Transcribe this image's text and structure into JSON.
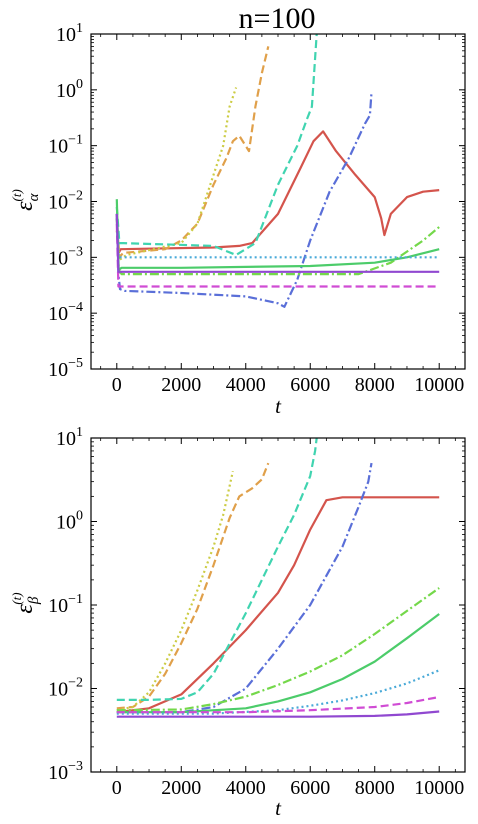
{
  "title": "n=100",
  "colors": [
    "#d4544c",
    "#e0a04a",
    "#cccc44",
    "#40d4b0",
    "#5a6fd8",
    "#74d84a",
    "#4ccc6a",
    "#4aaad8",
    "#d04cd4",
    "#9048d0"
  ],
  "chart_data": [
    {
      "type": "line",
      "yscale": "log",
      "xlabel": "t",
      "ylabel": "ε_α^(t)",
      "ylabel_main": "ε",
      "ylabel_sub": "α",
      "ylabel_sup": "(t)",
      "xlim": [
        -800,
        10800
      ],
      "ylim_exp": [
        -5,
        1
      ],
      "xticks": [
        0,
        2000,
        4000,
        6000,
        8000,
        10000
      ],
      "xtick_labels": [
        "0",
        "2000",
        "4000",
        "6000",
        "8000",
        "10000"
      ],
      "yticks_exp": [
        -5,
        -4,
        -3,
        -2,
        -1,
        0,
        1
      ],
      "ytick_labels": [
        {
          "base": "10",
          "exp": "−5"
        },
        {
          "base": "10",
          "exp": "−4"
        },
        {
          "base": "10",
          "exp": "−3"
        },
        {
          "base": "10",
          "exp": "−2"
        },
        {
          "base": "10",
          "exp": "−1"
        },
        {
          "base": "10",
          "exp": "0"
        },
        {
          "base": "10",
          "exp": "1"
        }
      ],
      "series": [
        {
          "style": "solid",
          "color": "#d4544c",
          "x": [
            0,
            60,
            120,
            3000,
            3800,
            4200,
            5000,
            5700,
            6100,
            6400,
            6800,
            7400,
            8000,
            8200,
            8300,
            8500,
            9000,
            9500,
            10000
          ],
          "y": [
            0.006,
            0.0012,
            0.0014,
            0.0015,
            0.0016,
            0.0018,
            0.006,
            0.04,
            0.12,
            0.18,
            0.08,
            0.03,
            0.012,
            0.005,
            0.0025,
            0.006,
            0.012,
            0.015,
            0.016
          ]
        },
        {
          "style": "dashed",
          "color": "#e0a04a",
          "x": [
            0,
            80,
            200,
            1500,
            2000,
            2500,
            3000,
            3400,
            3600,
            3800,
            4100,
            4300,
            4500,
            4700
          ],
          "y": [
            0.005,
            0.001,
            0.0012,
            0.0014,
            0.002,
            0.004,
            0.02,
            0.06,
            0.12,
            0.15,
            0.08,
            0.5,
            2,
            6
          ]
        },
        {
          "style": "dotted",
          "color": "#cccc44",
          "x": [
            0,
            80,
            300,
            2000,
            2500,
            3000,
            3300,
            3500,
            3700
          ],
          "y": [
            0.003,
            0.0009,
            0.0011,
            0.0018,
            0.004,
            0.03,
            0.1,
            0.5,
            1.1
          ]
        },
        {
          "style": "dashed",
          "color": "#40d4b0",
          "x": [
            0,
            80,
            200,
            3000,
            3700,
            4300,
            5000,
            5600,
            5900,
            6050,
            6200
          ],
          "y": [
            0.008,
            0.0018,
            0.0018,
            0.0016,
            0.0011,
            0.0018,
            0.02,
            0.1,
            0.3,
            0.5,
            10
          ]
        },
        {
          "style": "dashdot",
          "color": "#5a6fd8",
          "x": [
            0,
            50,
            100,
            250,
            2000,
            4000,
            5000,
            5200,
            5600,
            6000,
            6600,
            7200,
            7700,
            7850,
            7900
          ],
          "y": [
            0.006,
            0.0005,
            0.00027,
            0.00025,
            0.00023,
            0.0002,
            0.00015,
            0.00013,
            0.0004,
            0.002,
            0.015,
            0.06,
            0.25,
            0.35,
            0.9
          ]
        },
        {
          "style": "dashdot",
          "color": "#74d84a",
          "x": [
            0,
            60,
            150,
            6000,
            7500,
            8500,
            9500,
            10000
          ],
          "y": [
            0.005,
            0.0006,
            0.0005,
            0.0005,
            0.0005,
            0.0008,
            0.002,
            0.0035
          ]
        },
        {
          "style": "solid",
          "color": "#4ccc6a",
          "x": [
            0,
            60,
            150,
            2000,
            6000,
            8000,
            9000,
            10000
          ],
          "y": [
            0.011,
            0.0006,
            0.00065,
            0.00065,
            0.0007,
            0.0008,
            0.001,
            0.0014
          ]
        },
        {
          "style": "dotted",
          "color": "#4aaad8",
          "x": [
            0,
            60,
            150,
            10000
          ],
          "y": [
            0.005,
            0.001,
            0.001,
            0.001
          ]
        },
        {
          "style": "dashed",
          "color": "#d04cd4",
          "x": [
            0,
            50,
            150,
            10000
          ],
          "y": [
            0.004,
            0.0003,
            0.0003,
            0.0003
          ]
        },
        {
          "style": "solid",
          "color": "#9048d0",
          "x": [
            0,
            50,
            150,
            10000
          ],
          "y": [
            0.006,
            0.00055,
            0.00055,
            0.00055
          ]
        }
      ]
    },
    {
      "type": "line",
      "yscale": "log",
      "xlabel": "t",
      "ylabel": "ε_β^(t)",
      "ylabel_main": "ε",
      "ylabel_sub": "β",
      "ylabel_sup": "(t)",
      "xlim": [
        -800,
        10800
      ],
      "ylim_exp": [
        -3,
        1
      ],
      "xticks": [
        0,
        2000,
        4000,
        6000,
        8000,
        10000
      ],
      "xtick_labels": [
        "0",
        "2000",
        "4000",
        "6000",
        "8000",
        "10000"
      ],
      "yticks_exp": [
        -3,
        -2,
        -1,
        0,
        1
      ],
      "ytick_labels": [
        {
          "base": "10",
          "exp": "−3"
        },
        {
          "base": "10",
          "exp": "−2"
        },
        {
          "base": "10",
          "exp": "−1"
        },
        {
          "base": "10",
          "exp": "0"
        },
        {
          "base": "10",
          "exp": "1"
        }
      ],
      "series": [
        {
          "style": "solid",
          "color": "#d4544c",
          "x": [
            0,
            1000,
            2000,
            3000,
            4000,
            5000,
            5500,
            6000,
            6500,
            7000,
            8000,
            10000
          ],
          "y": [
            0.0052,
            0.0058,
            0.0085,
            0.02,
            0.05,
            0.14,
            0.3,
            0.8,
            1.8,
            1.95,
            1.95,
            1.95
          ]
        },
        {
          "style": "dashed",
          "color": "#e0a04a",
          "x": [
            0,
            500,
            1000,
            1500,
            2000,
            2500,
            3000,
            3500,
            3800,
            4200,
            4500,
            4700
          ],
          "y": [
            0.0058,
            0.006,
            0.008,
            0.015,
            0.035,
            0.09,
            0.3,
            1.1,
            2,
            2.5,
            3.2,
            5
          ]
        },
        {
          "style": "dotted",
          "color": "#cccc44",
          "x": [
            0,
            500,
            1000,
            1500,
            2000,
            2500,
            3000,
            3300,
            3600
          ],
          "y": [
            0.0055,
            0.006,
            0.009,
            0.02,
            0.05,
            0.15,
            0.5,
            1.2,
            4
          ]
        },
        {
          "style": "dashed",
          "color": "#40d4b0",
          "x": [
            0,
            1000,
            2000,
            2500,
            3000,
            4000,
            5000,
            5500,
            6000,
            6150,
            6200
          ],
          "y": [
            0.0073,
            0.0073,
            0.0075,
            0.009,
            0.015,
            0.08,
            0.5,
            1.2,
            3.5,
            7,
            10
          ]
        },
        {
          "style": "dashdot",
          "color": "#5a6fd8",
          "x": [
            0,
            2000,
            3000,
            4000,
            5000,
            6000,
            7000,
            7500,
            7800,
            7900
          ],
          "y": [
            0.0052,
            0.0052,
            0.006,
            0.01,
            0.03,
            0.1,
            0.5,
            1.5,
            3,
            5
          ]
        },
        {
          "style": "dashdot",
          "color": "#74d84a",
          "x": [
            0,
            2000,
            3000,
            4000,
            5000,
            6000,
            7000,
            8000,
            9000,
            10000
          ],
          "y": [
            0.0055,
            0.0056,
            0.0065,
            0.008,
            0.011,
            0.016,
            0.025,
            0.045,
            0.085,
            0.16
          ]
        },
        {
          "style": "solid",
          "color": "#4ccc6a",
          "x": [
            0,
            2000,
            4000,
            5000,
            6000,
            7000,
            8000,
            9000,
            10000
          ],
          "y": [
            0.0052,
            0.0052,
            0.0058,
            0.007,
            0.009,
            0.013,
            0.021,
            0.04,
            0.078
          ]
        },
        {
          "style": "dotted",
          "color": "#4aaad8",
          "x": [
            0,
            3000,
            5000,
            6000,
            7000,
            8000,
            9000,
            10000
          ],
          "y": [
            0.005,
            0.005,
            0.0055,
            0.0062,
            0.0072,
            0.0088,
            0.0115,
            0.0165
          ]
        },
        {
          "style": "dashed",
          "color": "#d04cd4",
          "x": [
            0,
            4000,
            6000,
            8000,
            9000,
            10000
          ],
          "y": [
            0.0052,
            0.0052,
            0.0055,
            0.006,
            0.0067,
            0.0079
          ]
        },
        {
          "style": "solid",
          "color": "#9048d0",
          "x": [
            0,
            6000,
            8000,
            9000,
            10000
          ],
          "y": [
            0.0046,
            0.0046,
            0.0047,
            0.0049,
            0.0053
          ]
        }
      ]
    }
  ]
}
